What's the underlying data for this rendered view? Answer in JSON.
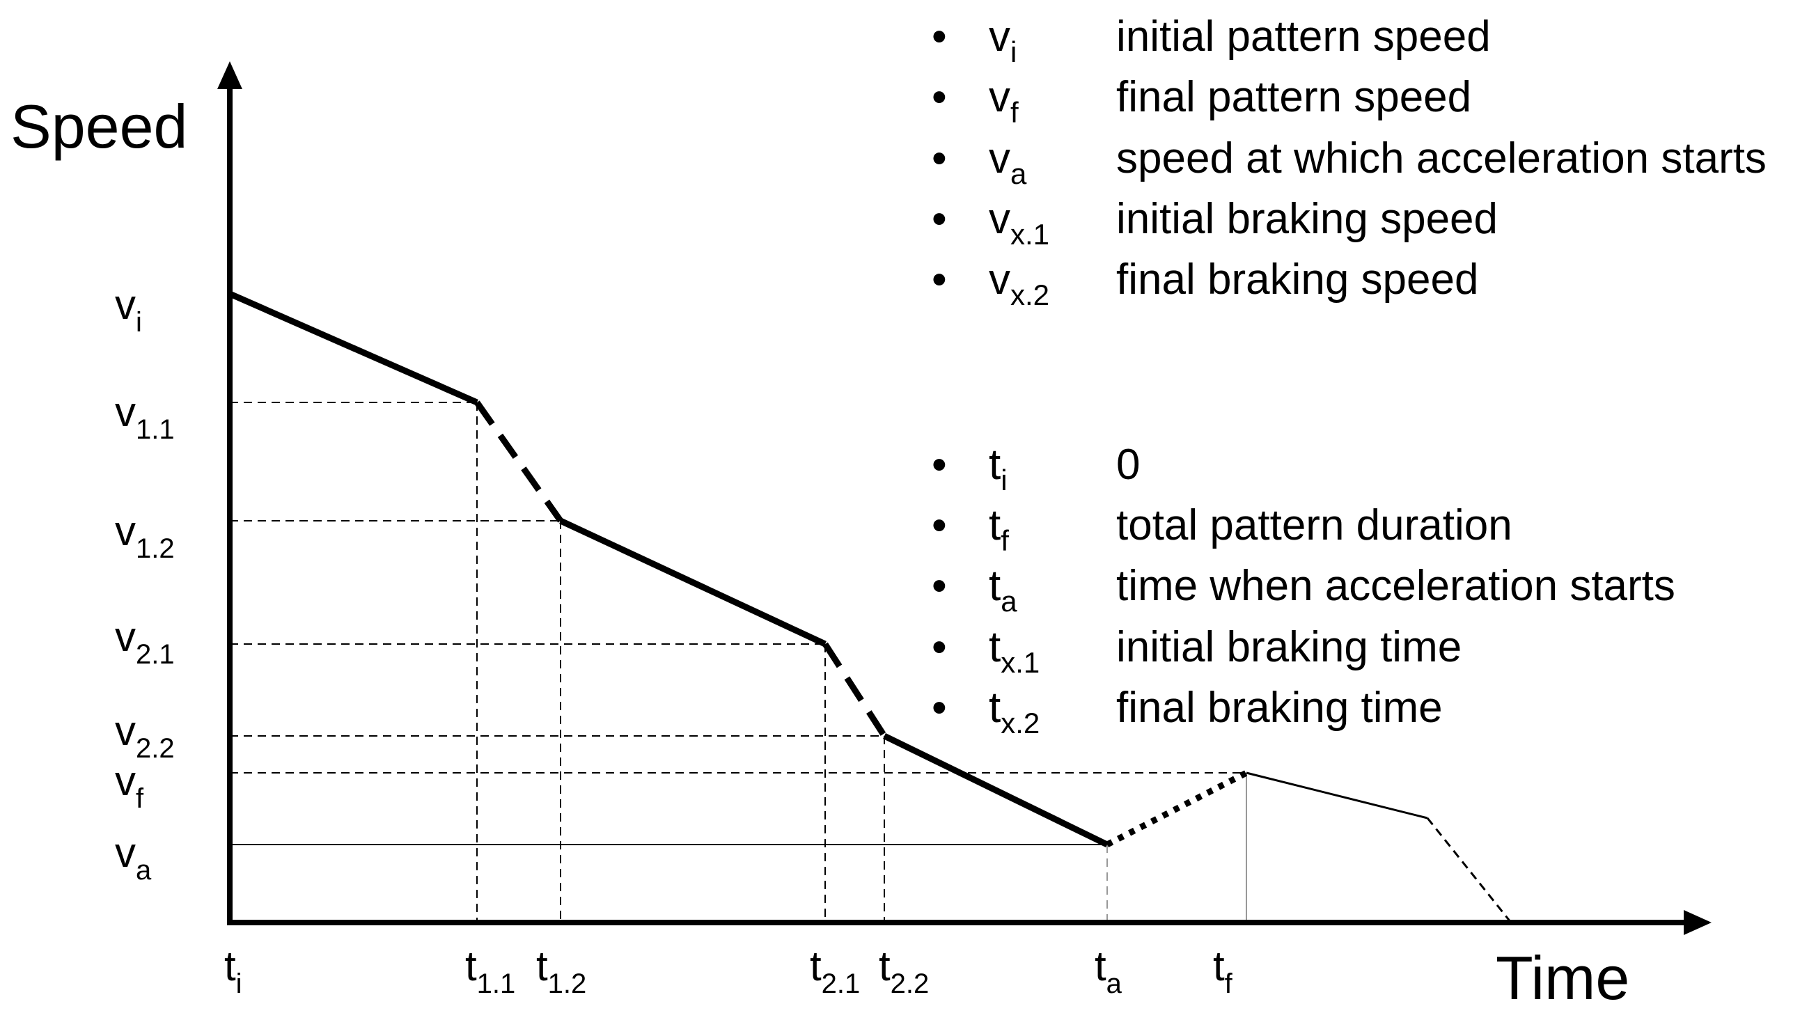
{
  "axes": {
    "y_title": "Speed",
    "x_title": "Time"
  },
  "y_ticks": [
    {
      "main": "v",
      "sub": "i"
    },
    {
      "main": "v",
      "sub": "1.1"
    },
    {
      "main": "v",
      "sub": "1.2"
    },
    {
      "main": "v",
      "sub": "2.1"
    },
    {
      "main": "v",
      "sub": "2.2"
    },
    {
      "main": "v",
      "sub": "f"
    },
    {
      "main": "v",
      "sub": "a"
    }
  ],
  "x_ticks": [
    {
      "main": "t",
      "sub": "i"
    },
    {
      "main": "t",
      "sub": "1.1"
    },
    {
      "main": "t",
      "sub": "1.2"
    },
    {
      "main": "t",
      "sub": "2.1"
    },
    {
      "main": "t",
      "sub": "2.2"
    },
    {
      "main": "t",
      "sub": "a"
    },
    {
      "main": "t",
      "sub": "f"
    }
  ],
  "legend_speed": [
    {
      "symbol": "v",
      "sub": "i",
      "text": "initial pattern speed"
    },
    {
      "symbol": "v",
      "sub": "f",
      "text": "final pattern speed"
    },
    {
      "symbol": "v",
      "sub": "a",
      "text": "speed at which acceleration starts"
    },
    {
      "symbol": "v",
      "sub": "x.1",
      "text": "initial braking speed"
    },
    {
      "symbol": "v",
      "sub": "x.2",
      "text": "final braking speed"
    }
  ],
  "legend_time": [
    {
      "symbol": "t",
      "sub": "i",
      "text": "0"
    },
    {
      "symbol": "t",
      "sub": "f",
      "text": "total pattern duration"
    },
    {
      "symbol": "t",
      "sub": "a",
      "text": "time when acceleration starts"
    },
    {
      "symbol": "t",
      "sub": "x.1",
      "text": "initial braking time"
    },
    {
      "symbol": "t",
      "sub": "x.2",
      "text": "final braking time"
    }
  ],
  "bullet": "•"
}
